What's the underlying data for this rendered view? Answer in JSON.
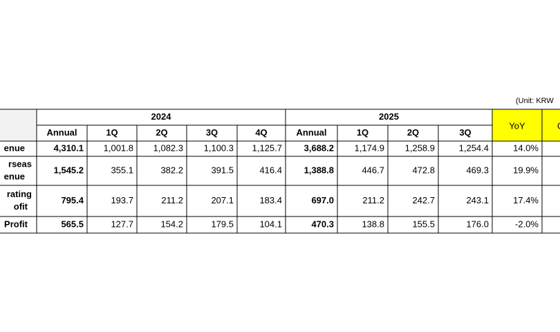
{
  "unit_note": "(Unit: KRW",
  "table": {
    "years": [
      "2024",
      "2025"
    ],
    "columns": [
      "Annual",
      "1Q",
      "2Q",
      "3Q",
      "4Q",
      "Annual",
      "1Q",
      "2Q",
      "3Q"
    ],
    "yoy_header": "YoY",
    "extra_header": "Q",
    "rows": [
      {
        "label": [
          "enue"
        ],
        "values": [
          "4,310.1",
          "1,001.8",
          "1,082.3",
          "1,100.3",
          "1,125.7",
          "3,688.2",
          "1,174.9",
          "1,258.9",
          "1,254.4",
          "14.0%"
        ]
      },
      {
        "label": [
          "rseas",
          "enue"
        ],
        "values": [
          "1,545.2",
          "355.1",
          "382.2",
          "391.5",
          "416.4",
          "1,388.8",
          "446.7",
          "472.8",
          "469.3",
          "19.9%"
        ]
      },
      {
        "label": [
          "rating",
          "ofit"
        ],
        "values": [
          "795.4",
          "193.7",
          "211.2",
          "207.1",
          "183.4",
          "697.0",
          "211.2",
          "242.7",
          "243.1",
          "17.4%"
        ]
      },
      {
        "label": [
          "Profit"
        ],
        "values": [
          "565.5",
          "127.7",
          "154.2",
          "179.5",
          "104.1",
          "470.3",
          "138.8",
          "155.5",
          "176.0",
          "-2.0%"
        ]
      }
    ]
  }
}
